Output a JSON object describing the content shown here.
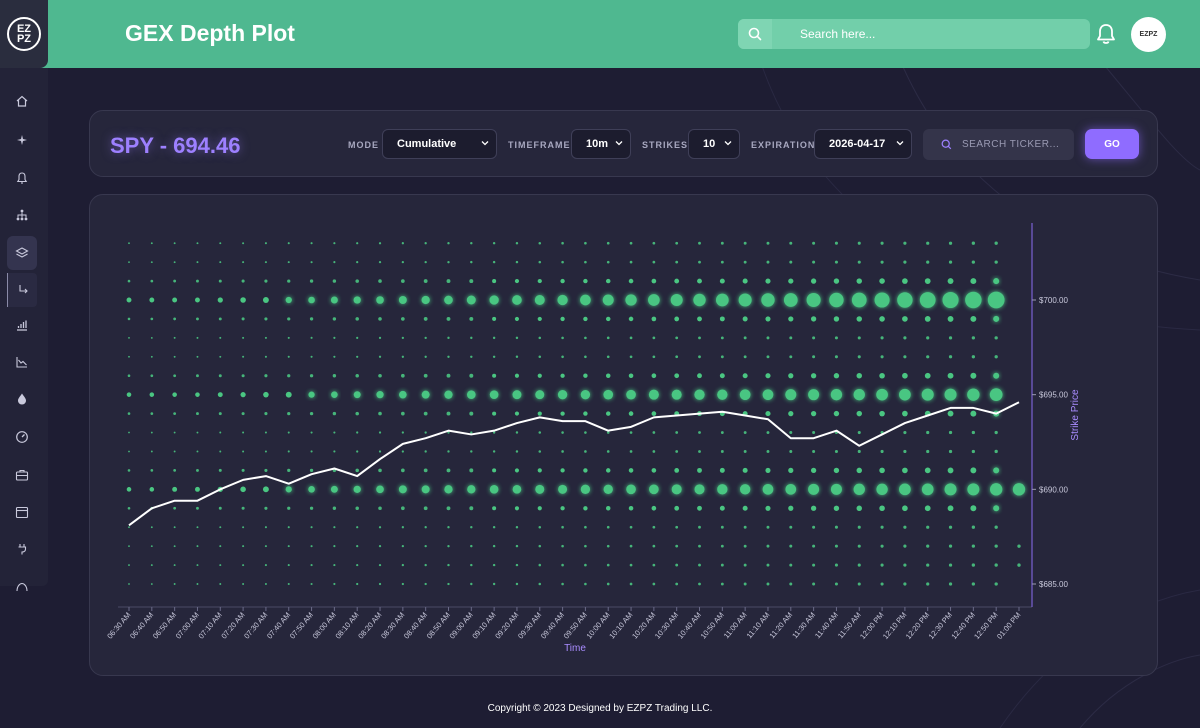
{
  "app": {
    "logo_text": "EZ PZ",
    "page_title": "GEX Depth Plot"
  },
  "header": {
    "search_placeholder": "Search here...",
    "avatar_text": "EZPZ"
  },
  "sidebar": {
    "items": [
      {
        "icon": "home-icon"
      },
      {
        "icon": "sparkle-icon"
      },
      {
        "icon": "bell-icon"
      },
      {
        "icon": "hierarchy-icon"
      },
      {
        "icon": "layers-icon",
        "active": true
      },
      {
        "icon": "return-arrow-icon",
        "sub": true
      },
      {
        "icon": "bar-chart-icon"
      },
      {
        "icon": "trend-down-icon"
      },
      {
        "icon": "droplet-icon"
      },
      {
        "icon": "gauge-icon"
      },
      {
        "icon": "briefcase-icon"
      },
      {
        "icon": "calendar-icon"
      },
      {
        "icon": "plug-icon"
      },
      {
        "icon": "speedometer-icon"
      }
    ]
  },
  "toolbar": {
    "ticker_title": "SPY - 694.46",
    "mode_label": "MODE",
    "mode_value": "Cumulative",
    "timeframe_label": "TIMEFRAME",
    "timeframe_value": "10m",
    "strikes_label": "STRIKES",
    "strikes_value": "10",
    "expiration_label": "EXPIRATION",
    "expiration_value": "2026-04-17",
    "ticker_search_placeholder": "SEARCH TICKER...",
    "go_label": "GO"
  },
  "chart_data": {
    "type": "scatter",
    "xlabel": "Time",
    "ylabel": "Strike Price",
    "x": [
      "06:30 AM",
      "06:40 AM",
      "06:50 AM",
      "07:00 AM",
      "07:10 AM",
      "07:20 AM",
      "07:30 AM",
      "07:40 AM",
      "07:50 AM",
      "08:00 AM",
      "08:10 AM",
      "08:20 AM",
      "08:30 AM",
      "08:40 AM",
      "08:50 AM",
      "09:00 AM",
      "09:10 AM",
      "09:20 AM",
      "09:30 AM",
      "09:40 AM",
      "09:50 AM",
      "10:00 AM",
      "10:10 AM",
      "10:20 AM",
      "10:30 AM",
      "10:40 AM",
      "10:50 AM",
      "11:00 AM",
      "11:10 AM",
      "11:20 AM",
      "11:30 AM",
      "11:40 AM",
      "11:50 AM",
      "12:00 PM",
      "12:10 PM",
      "12:20 PM",
      "12:30 PM",
      "12:40 PM",
      "12:50 PM",
      "01:00 PM"
    ],
    "y_ticks": [
      "$685.00",
      "$690.00",
      "$695.00",
      "$700.00"
    ],
    "ylim": [
      684,
      704
    ],
    "strikes": [
      685,
      686,
      687,
      688,
      689,
      690,
      691,
      692,
      693,
      694,
      695,
      696,
      697,
      698,
      699,
      700,
      701,
      702,
      703
    ],
    "price_line": [
      688.1,
      689.0,
      689.4,
      689.4,
      690.0,
      690.5,
      690.7,
      690.3,
      690.8,
      691.1,
      690.7,
      691.6,
      692.4,
      692.7,
      693.1,
      692.9,
      693.1,
      693.5,
      693.8,
      693.6,
      693.6,
      693.1,
      693.3,
      693.8,
      693.9,
      694.0,
      694.1,
      693.9,
      693.7,
      692.7,
      692.7,
      693.1,
      692.3,
      692.9,
      693.5,
      693.9,
      694.3,
      694.3,
      694.0,
      694.6
    ],
    "gex_strength_700": [
      0.5,
      0.5,
      0.5,
      0.5,
      0.6,
      0.7,
      0.8,
      0.9,
      1.0,
      1.1,
      1.2,
      1.3,
      1.4,
      1.5,
      1.6,
      1.7,
      1.8,
      1.9,
      2.0,
      2.1,
      2.2,
      2.3,
      2.4,
      2.5,
      2.6,
      2.7,
      2.8,
      2.9,
      3.0,
      3.1,
      3.2,
      3.3,
      3.4,
      3.5,
      3.6,
      3.7,
      3.8,
      3.9,
      4.0,
      0.0
    ],
    "gex_strength_695": [
      0.4,
      0.4,
      0.4,
      0.4,
      0.5,
      0.6,
      0.7,
      0.8,
      0.9,
      1.0,
      1.1,
      1.2,
      1.3,
      1.4,
      1.5,
      1.6,
      1.6,
      1.7,
      1.7,
      1.8,
      1.8,
      1.9,
      1.9,
      2.0,
      2.0,
      2.1,
      2.1,
      2.2,
      2.2,
      2.3,
      2.3,
      2.4,
      2.4,
      2.5,
      2.5,
      2.6,
      2.6,
      2.7,
      2.8,
      0.0
    ],
    "gex_strength_690": [
      0.4,
      0.4,
      0.5,
      0.5,
      0.6,
      0.7,
      0.8,
      0.9,
      1.0,
      1.1,
      1.2,
      1.3,
      1.4,
      1.4,
      1.5,
      1.5,
      1.6,
      1.6,
      1.7,
      1.7,
      1.8,
      1.8,
      1.9,
      1.9,
      2.0,
      2.0,
      2.1,
      2.1,
      2.2,
      2.2,
      2.3,
      2.3,
      2.4,
      2.4,
      2.5,
      2.5,
      2.6,
      2.6,
      2.7,
      2.7
    ]
  },
  "footer": {
    "text": "Copyright © 2023 Designed by EZPZ Trading LLC."
  }
}
